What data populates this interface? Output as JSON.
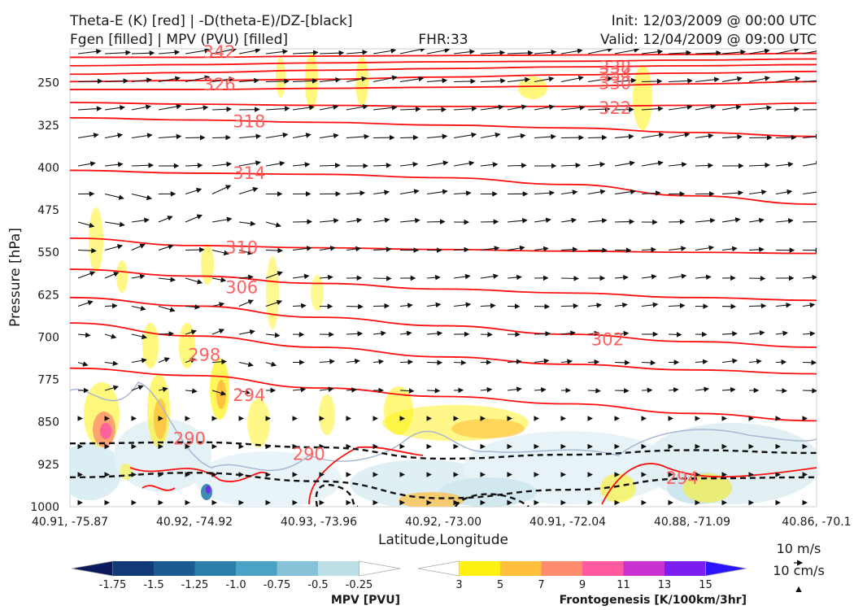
{
  "header": {
    "title_left_1": "Theta-E (K) [red] | -D(theta-E)/DZ-[black]",
    "title_left_2": "Fgen [filled] | MPV (PVU) [filled]",
    "title_center": "FHR:33",
    "title_right_1": "Init: 12/03/2009 @ 00:00 UTC",
    "title_right_2": "Valid: 12/04/2009 @ 09:00 UTC"
  },
  "chart_data": {
    "type": "cross-section",
    "xlabel": "Latitude,Longitude",
    "ylabel": "Pressure [hPa]",
    "x_ticks": [
      "40.91, -75.87",
      "40.92, -74.92",
      "40.93, -73.96",
      "40.92, -73.00",
      "40.91, -72.04",
      "40.88, -71.09",
      "40.86, -70.1"
    ],
    "y_ticks": [
      250,
      325,
      400,
      475,
      550,
      625,
      700,
      775,
      850,
      925,
      1000
    ],
    "ylim": [
      1000,
      190
    ],
    "theta_e_contours": [
      {
        "value": 342,
        "y": [
          205,
          205,
          203,
          202,
          201,
          200,
          198
        ]
      },
      {
        "value": 338,
        "y": [
          220,
          218,
          215,
          213,
          212,
          210,
          208
        ]
      },
      {
        "value": 334,
        "y": [
          235,
          232,
          228,
          225,
          222,
          220,
          218
        ]
      },
      {
        "value": 330,
        "y": [
          248,
          246,
          244,
          240,
          236,
          233,
          230
        ]
      },
      {
        "value": 326,
        "y": [
          262,
          262,
          260,
          258,
          256,
          252,
          248
        ]
      },
      {
        "value": 322,
        "y": [
          285,
          288,
          290,
          292,
          292,
          290,
          286
        ]
      },
      {
        "value": 318,
        "y": [
          312,
          316,
          320,
          325,
          330,
          338,
          345
        ]
      },
      {
        "value": 314,
        "y": [
          405,
          410,
          412,
          418,
          430,
          450,
          465
        ]
      },
      {
        "value": 310,
        "y": [
          525,
          538,
          542,
          545,
          548,
          550,
          552
        ]
      },
      {
        "value": 306,
        "y": [
          580,
          592,
          605,
          615,
          622,
          630,
          635
        ]
      },
      {
        "value": 302,
        "y": [
          630,
          645,
          665,
          680,
          695,
          708,
          718
        ]
      },
      {
        "value": 298,
        "y": [
          675,
          698,
          718,
          735,
          748,
          758,
          765
        ]
      },
      {
        "value": 294,
        "y": [
          755,
          768,
          790,
          805,
          818,
          835,
          848
        ]
      }
    ],
    "contour_labels": [
      {
        "text": "342",
        "x": 0.2,
        "p": 196
      },
      {
        "text": "338",
        "x": 0.73,
        "p": 223
      },
      {
        "text": "334",
        "x": 0.73,
        "p": 236
      },
      {
        "text": "330",
        "x": 0.73,
        "p": 251
      },
      {
        "text": "326",
        "x": 0.2,
        "p": 253
      },
      {
        "text": "322",
        "x": 0.73,
        "p": 295
      },
      {
        "text": "318",
        "x": 0.24,
        "p": 319
      },
      {
        "text": "314",
        "x": 0.24,
        "p": 410
      },
      {
        "text": "310",
        "x": 0.23,
        "p": 542
      },
      {
        "text": "306",
        "x": 0.23,
        "p": 612
      },
      {
        "text": "302",
        "x": 0.72,
        "p": 704
      },
      {
        "text": "298",
        "x": 0.18,
        "p": 732
      },
      {
        "text": "294",
        "x": 0.24,
        "p": 803
      },
      {
        "text": "290",
        "x": 0.16,
        "p": 880
      },
      {
        "text": "290",
        "x": 0.32,
        "p": 907
      },
      {
        "text": "294",
        "x": 0.82,
        "p": 950
      }
    ],
    "stability_dashed": [
      {
        "y": [
          888,
          886,
          895,
          915,
          908,
          900,
          905
        ]
      },
      {
        "y": [
          948,
          940,
          955,
          985,
          970,
          950,
          948
        ]
      }
    ],
    "mpv_colorbar": {
      "label": "MPV [PVU]",
      "ticks": [
        "-1.75",
        "-1.5",
        "-1.25",
        "-1.0",
        "-0.75",
        "-0.5",
        "-0.25"
      ],
      "colors": [
        "#0a1a5c",
        "#123a78",
        "#1a5b94",
        "#2a7fad",
        "#4aa2c4",
        "#86c2d7",
        "#bcdfe8",
        "#ffffff"
      ]
    },
    "fgen_colorbar": {
      "label": "Frontogenesis [K/100km/3hr]",
      "ticks": [
        "3",
        "5",
        "7",
        "9",
        "11",
        "13",
        "15"
      ],
      "colors": [
        "#ffffff",
        "#fff212",
        "#ffbe3c",
        "#ff8c6e",
        "#ff5aa0",
        "#c832d2",
        "#7d1ef0",
        "#2d14ff"
      ]
    },
    "vector_key": {
      "label1": "10 m/s",
      "label2": "10 cm/s"
    }
  }
}
